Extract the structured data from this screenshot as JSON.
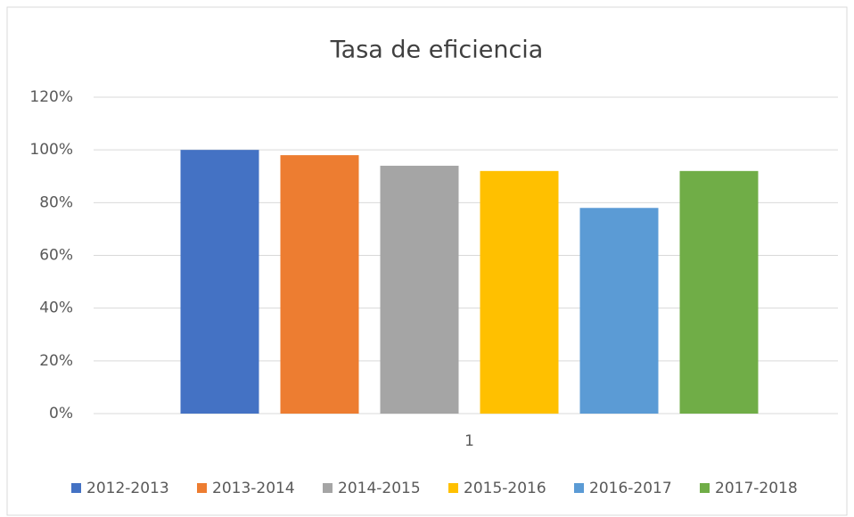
{
  "chart_data": {
    "type": "bar",
    "title": "Tasa de eficiencia",
    "categories": [
      "1"
    ],
    "series": [
      {
        "name": "2012-2013",
        "color": "#4472c4",
        "values": [
          100
        ]
      },
      {
        "name": "2013-2014",
        "color": "#ed7d31",
        "values": [
          98
        ]
      },
      {
        "name": "2014-2015",
        "color": "#a5a5a5",
        "values": [
          94
        ]
      },
      {
        "name": "2015-2016",
        "color": "#ffc000",
        "values": [
          92
        ]
      },
      {
        "name": "2016-2017",
        "color": "#5b9bd5",
        "values": [
          78
        ]
      },
      {
        "name": "2017-2018",
        "color": "#70ad47",
        "values": [
          92
        ]
      }
    ],
    "ylim": [
      0,
      120
    ],
    "yticks": [
      {
        "value": 0,
        "label": "0%"
      },
      {
        "value": 20,
        "label": "20%"
      },
      {
        "value": 40,
        "label": "40%"
      },
      {
        "value": 60,
        "label": "60%"
      },
      {
        "value": 80,
        "label": "80%"
      },
      {
        "value": 100,
        "label": "100%"
      },
      {
        "value": 120,
        "label": "120%"
      }
    ],
    "grid": true,
    "legend": "bottom"
  }
}
